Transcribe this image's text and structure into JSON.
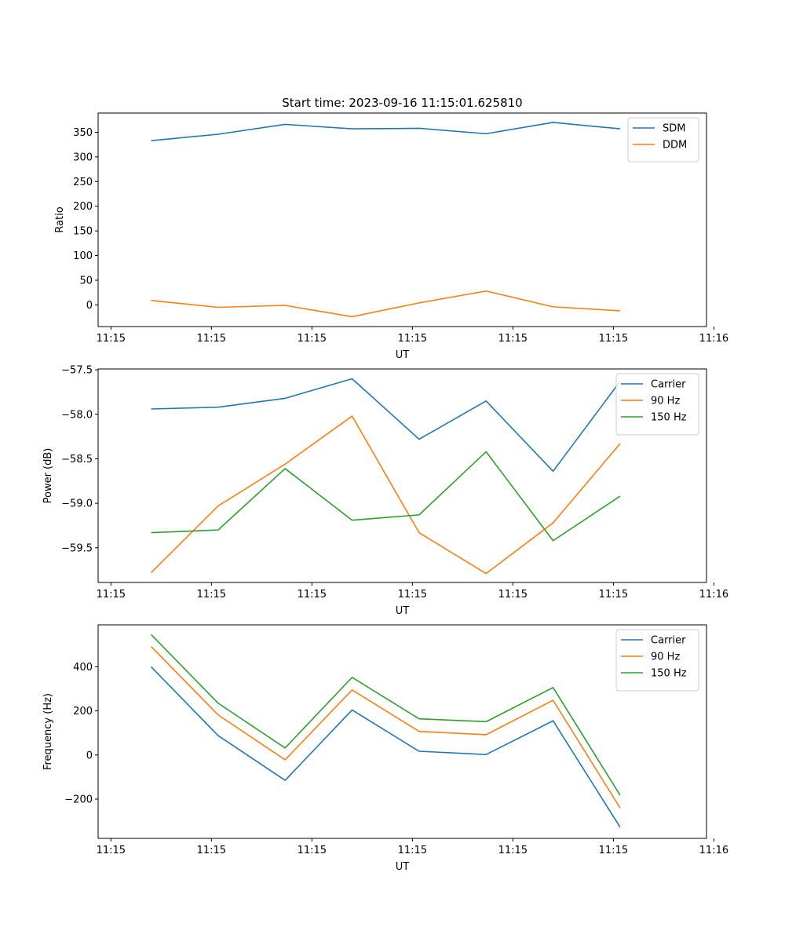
{
  "figure": {
    "title": "Start time: 2023-09-16 11:15:01.625810"
  },
  "colors": {
    "blue": "#1f77b4",
    "orange": "#ff7f0e",
    "green": "#2ca02c"
  },
  "chart_data": [
    {
      "type": "line",
      "title": "Start time: 2023-09-16 11:15:01.625810",
      "xlabel": "UT",
      "ylabel": "Ratio",
      "x": [
        1,
        2,
        3,
        4,
        5,
        6,
        7,
        8
      ],
      "xlim": [
        0.209,
        9.29
      ],
      "xticks": [
        0.4,
        1.9,
        3.4,
        4.9,
        6.4,
        7.9,
        9.4
      ],
      "xtick_labels": [
        "11:15",
        "11:15",
        "11:15",
        "11:15",
        "11:15",
        "11:15",
        "11:16"
      ],
      "ylim": [
        -44,
        389
      ],
      "yticks": [
        0,
        50,
        100,
        150,
        200,
        250,
        300,
        350
      ],
      "ytick_labels": [
        "0",
        "50",
        "100",
        "150",
        "200",
        "250",
        "300",
        "350"
      ],
      "legend": "top-right",
      "series": [
        {
          "name": "SDM",
          "color": "#1f77b4",
          "values": [
            333,
            346,
            366,
            357,
            358,
            347,
            370,
            357
          ]
        },
        {
          "name": "DDM",
          "color": "#ff7f0e",
          "values": [
            9,
            -5,
            -1,
            -24,
            4,
            28,
            -4,
            -12
          ]
        }
      ]
    },
    {
      "type": "line",
      "title": "",
      "xlabel": "UT",
      "ylabel": "Power (dB)",
      "x": [
        1,
        2,
        3,
        4,
        5,
        6,
        7,
        8
      ],
      "xlim": [
        0.209,
        9.29
      ],
      "xticks": [
        0.4,
        1.9,
        3.4,
        4.9,
        6.4,
        7.9,
        9.4
      ],
      "xtick_labels": [
        "11:15",
        "11:15",
        "11:15",
        "11:15",
        "11:15",
        "11:15",
        "11:16"
      ],
      "ylim": [
        -59.89,
        -57.49
      ],
      "yticks": [
        -59.5,
        -59.0,
        -58.5,
        -58.0,
        -57.5
      ],
      "ytick_labels": [
        "−59.5",
        "−59.0",
        "−58.5",
        "−58.0",
        "−57.5"
      ],
      "legend": "top-right",
      "series": [
        {
          "name": "Carrier",
          "color": "#1f77b4",
          "values": [
            -57.94,
            -57.92,
            -57.82,
            -57.6,
            -58.28,
            -57.85,
            -58.64,
            -57.63
          ]
        },
        {
          "name": "90 Hz",
          "color": "#ff7f0e",
          "values": [
            -59.78,
            -59.03,
            -58.56,
            -58.02,
            -59.33,
            -59.79,
            -59.22,
            -58.33
          ]
        },
        {
          "name": "150 Hz",
          "color": "#2ca02c",
          "values": [
            -59.33,
            -59.3,
            -58.61,
            -59.19,
            -59.13,
            -58.42,
            -59.42,
            -58.92
          ]
        }
      ]
    },
    {
      "type": "line",
      "title": "",
      "xlabel": "UT",
      "ylabel": "Frequency (Hz)",
      "x": [
        1,
        2,
        3,
        4,
        5,
        6,
        7,
        8
      ],
      "xlim": [
        0.209,
        9.29
      ],
      "xticks": [
        0.4,
        1.9,
        3.4,
        4.9,
        6.4,
        7.9,
        9.4
      ],
      "xtick_labels": [
        "11:15",
        "11:15",
        "11:15",
        "11:15",
        "11:15",
        "11:15",
        "11:16"
      ],
      "ylim": [
        -378,
        590
      ],
      "yticks": [
        -200,
        0,
        200,
        400
      ],
      "ytick_labels": [
        "−200",
        "0",
        "200",
        "400"
      ],
      "legend": "top-right",
      "series": [
        {
          "name": "Carrier",
          "color": "#1f77b4",
          "values": [
            400,
            88,
            -115,
            204,
            17,
            2,
            155,
            -327
          ]
        },
        {
          "name": "90 Hz",
          "color": "#ff7f0e",
          "values": [
            492,
            182,
            -22,
            295,
            107,
            92,
            248,
            -240
          ]
        },
        {
          "name": "150 Hz",
          "color": "#2ca02c",
          "values": [
            546,
            235,
            32,
            352,
            164,
            151,
            306,
            -182
          ]
        }
      ]
    }
  ]
}
